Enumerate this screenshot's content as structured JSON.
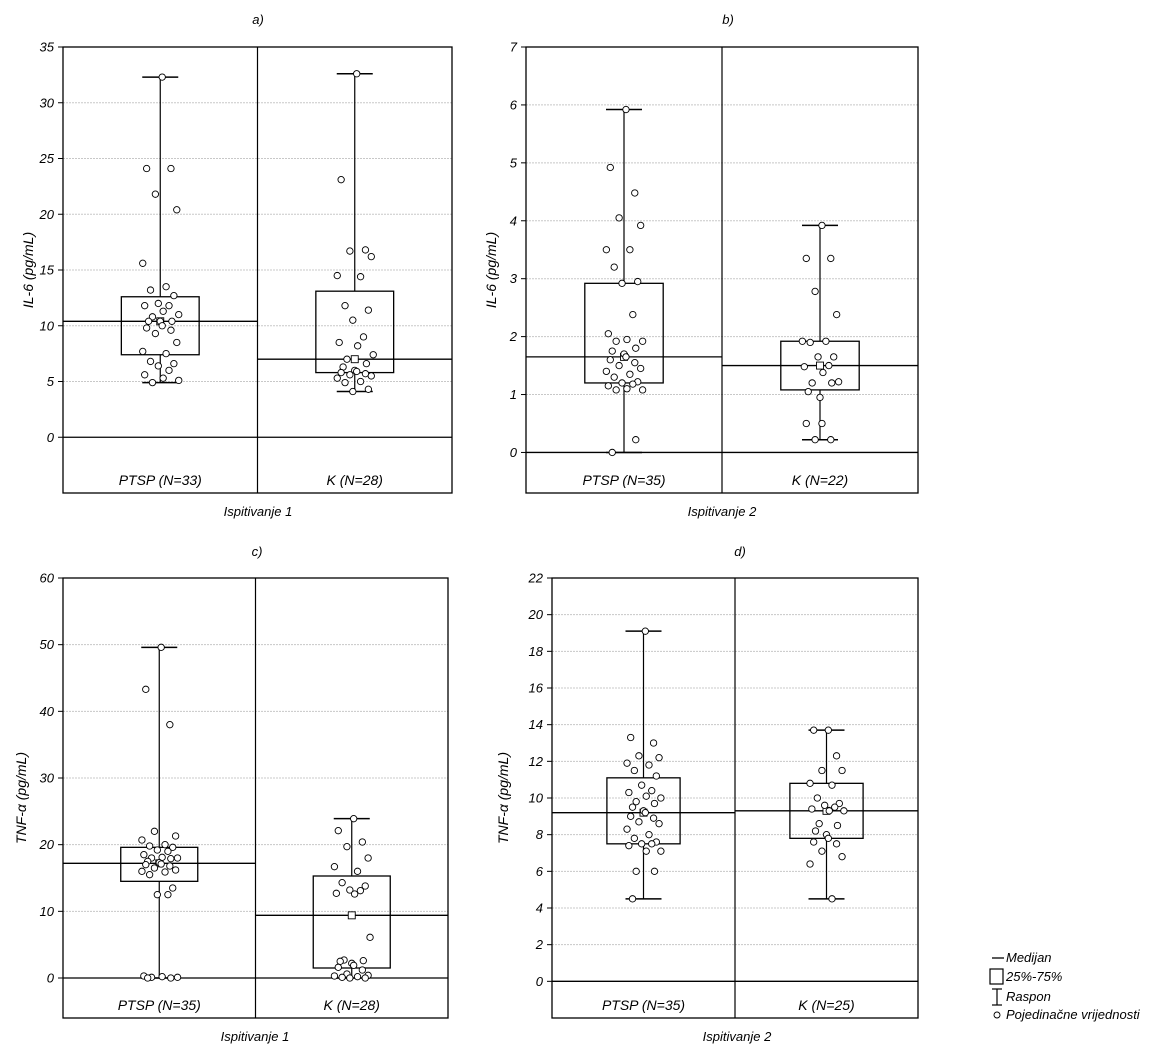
{
  "chart_data": [
    {
      "type": "box",
      "title": "a)",
      "ylabel": "IL-6 (pg/mL)",
      "xlabel": "Ispitivanje 1",
      "ylim": [
        -5,
        35
      ],
      "yticks": [
        0,
        5,
        10,
        15,
        20,
        25,
        30,
        35
      ],
      "grid": true,
      "groups": [
        {
          "name": "PTSP (N=33)",
          "stats": {
            "min": 4.9,
            "q1": 7.4,
            "median": 10.4,
            "q3": 12.6,
            "max": 32.3,
            "mean": 10.4
          },
          "points": [
            32.3,
            24.1,
            24.1,
            21.8,
            20.4,
            15.6,
            13.5,
            13.2,
            12.7,
            12.0,
            11.8,
            11.8,
            11.3,
            11.0,
            10.8,
            10.4,
            10.4,
            10.4,
            10.0,
            9.8,
            9.6,
            9.3,
            8.5,
            7.7,
            7.5,
            6.8,
            6.6,
            6.4,
            6.0,
            5.6,
            5.3,
            5.1,
            4.9
          ]
        },
        {
          "name": "K (N=28)",
          "stats": {
            "min": 4.1,
            "q1": 5.8,
            "median": 7.0,
            "q3": 13.1,
            "max": 32.6,
            "mean": 7.0
          },
          "points": [
            32.6,
            23.1,
            16.8,
            16.7,
            16.2,
            14.5,
            14.4,
            11.8,
            11.4,
            10.5,
            9.0,
            8.5,
            8.2,
            7.4,
            7.0,
            6.6,
            6.3,
            6.0,
            5.9,
            5.8,
            5.7,
            5.6,
            5.5,
            5.3,
            5.0,
            4.9,
            4.3,
            4.1
          ]
        }
      ]
    },
    {
      "type": "box",
      "title": "b)",
      "ylabel": "IL-6 (pg/mL)",
      "xlabel": "Ispitivanje 2",
      "ylim": [
        -0.7,
        7
      ],
      "yticks": [
        0,
        1,
        2,
        3,
        4,
        5,
        6,
        7
      ],
      "grid": true,
      "groups": [
        {
          "name": "PTSP (N=35)",
          "stats": {
            "min": 0.0,
            "q1": 1.2,
            "median": 1.65,
            "q3": 2.92,
            "max": 5.92,
            "mean": 1.65
          },
          "points": [
            5.92,
            4.92,
            4.48,
            4.05,
            3.92,
            3.5,
            3.5,
            3.2,
            2.95,
            2.92,
            2.38,
            2.05,
            1.95,
            1.92,
            1.92,
            1.8,
            1.75,
            1.7,
            1.65,
            1.6,
            1.55,
            1.5,
            1.45,
            1.4,
            1.35,
            1.3,
            1.22,
            1.2,
            1.18,
            1.15,
            1.1,
            1.08,
            1.08,
            0.22,
            0.0
          ]
        },
        {
          "name": "K (N=22)",
          "stats": {
            "min": 0.22,
            "q1": 1.08,
            "median": 1.5,
            "q3": 1.92,
            "max": 3.92,
            "mean": 1.5
          },
          "points": [
            3.92,
            3.35,
            3.35,
            2.78,
            2.38,
            1.92,
            1.92,
            1.9,
            1.65,
            1.65,
            1.5,
            1.48,
            1.38,
            1.22,
            1.2,
            1.2,
            1.05,
            0.95,
            0.5,
            0.5,
            0.22,
            0.22
          ]
        }
      ]
    },
    {
      "type": "box",
      "title": "c)",
      "ylabel": "TNF-α (pg/mL)",
      "xlabel": "Ispitivanje 1",
      "ylim": [
        -6,
        60
      ],
      "yticks": [
        0,
        10,
        20,
        30,
        40,
        50,
        60
      ],
      "grid": true,
      "groups": [
        {
          "name": "PTSP (N=35)",
          "stats": {
            "min": 0.0,
            "q1": 14.5,
            "median": 17.2,
            "q3": 19.6,
            "max": 49.6,
            "mean": 17.2
          },
          "points": [
            49.6,
            43.3,
            38.0,
            22.0,
            21.3,
            20.7,
            20.0,
            19.8,
            19.6,
            19.2,
            19.0,
            18.5,
            18.1,
            18.0,
            18.0,
            17.9,
            17.5,
            17.3,
            17.1,
            17.0,
            16.8,
            16.5,
            16.2,
            16.0,
            15.9,
            15.5,
            13.5,
            12.5,
            12.5,
            0.3,
            0.2,
            0.1,
            0.1,
            0.0,
            0.0
          ]
        },
        {
          "name": "K (N=28)",
          "stats": {
            "min": 0.0,
            "q1": 1.5,
            "median": 9.4,
            "q3": 15.3,
            "max": 23.9,
            "mean": 9.4
          },
          "points": [
            23.9,
            22.1,
            20.4,
            19.7,
            18.0,
            16.7,
            16.0,
            14.3,
            13.8,
            13.2,
            13.1,
            12.7,
            12.6,
            6.1,
            2.7,
            2.6,
            2.5,
            2.2,
            1.9,
            1.6,
            1.2,
            0.6,
            0.4,
            0.3,
            0.2,
            0.1,
            0.0,
            0.0
          ]
        }
      ]
    },
    {
      "type": "box",
      "title": "d)",
      "ylabel": "TNF-α (pg/mL)",
      "xlabel": "Ispitivanje 2",
      "ylim": [
        -2,
        22
      ],
      "yticks": [
        0,
        2,
        4,
        6,
        8,
        10,
        12,
        14,
        16,
        18,
        20,
        22
      ],
      "grid": true,
      "groups": [
        {
          "name": "PTSP (N=35)",
          "stats": {
            "min": 4.5,
            "q1": 7.5,
            "median": 9.2,
            "q3": 11.1,
            "max": 19.1,
            "mean": 9.2
          },
          "points": [
            19.1,
            13.3,
            13.0,
            12.3,
            12.2,
            11.9,
            11.8,
            11.5,
            11.2,
            10.7,
            10.4,
            10.3,
            10.1,
            10.0,
            9.8,
            9.7,
            9.5,
            9.3,
            9.2,
            9.0,
            8.9,
            8.7,
            8.6,
            8.3,
            8.0,
            7.8,
            7.6,
            7.5,
            7.5,
            7.4,
            7.1,
            7.1,
            6.0,
            6.0,
            4.5
          ]
        },
        {
          "name": "K (N=25)",
          "stats": {
            "min": 4.5,
            "q1": 7.8,
            "median": 9.3,
            "q3": 10.8,
            "max": 13.7,
            "mean": 9.3
          },
          "points": [
            13.7,
            13.7,
            12.3,
            11.5,
            11.5,
            10.8,
            10.7,
            10.0,
            9.7,
            9.6,
            9.5,
            9.4,
            9.3,
            9.3,
            8.6,
            8.5,
            8.2,
            8.0,
            7.8,
            7.6,
            7.5,
            7.1,
            6.8,
            6.4,
            4.5
          ]
        }
      ]
    }
  ],
  "legend": {
    "items": [
      {
        "symbol": "line",
        "label": "Medijan"
      },
      {
        "symbol": "box",
        "label": "25%-75%"
      },
      {
        "symbol": "whisker",
        "label": "Raspon"
      },
      {
        "symbol": "circle",
        "label": "Pojedinačne vrijednosti"
      }
    ]
  }
}
